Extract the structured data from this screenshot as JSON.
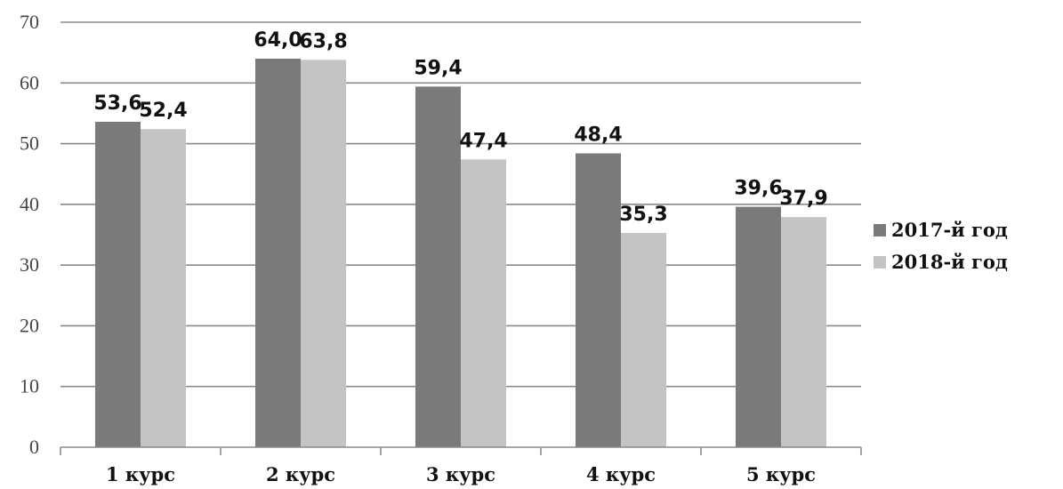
{
  "chart_data": {
    "type": "bar",
    "categories": [
      "1 курс",
      "2 курс",
      "3 курс",
      "4 курс",
      "5 курс"
    ],
    "series": [
      {
        "name": "2017-й год",
        "values": [
          53.6,
          64.0,
          59.4,
          48.4,
          39.6
        ],
        "labels": [
          "53,6",
          "64,0",
          "59,4",
          "48,4",
          "39,6"
        ],
        "color": "#7a7a7a"
      },
      {
        "name": "2018-й год",
        "values": [
          52.4,
          63.8,
          47.4,
          35.3,
          37.9
        ],
        "labels": [
          "52,4",
          "63,8",
          "47,4",
          "35,3",
          "37,9"
        ],
        "color": "#c4c4c4"
      }
    ],
    "yticks": [
      0,
      10,
      20,
      30,
      40,
      50,
      60,
      70
    ],
    "ylim": [
      0,
      70
    ],
    "grid": true,
    "legend": "right"
  }
}
